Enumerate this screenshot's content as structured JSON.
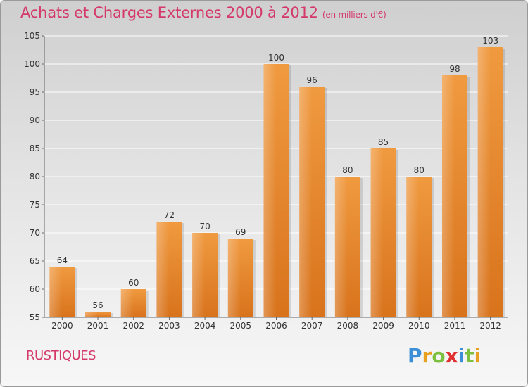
{
  "header": {
    "title": "Achats et Charges Externes 2000 à 2012",
    "subtitle": "(en milliers d'€)"
  },
  "footer": {
    "commune": "RUSTIQUES"
  },
  "logo": {
    "text": "Proxiti",
    "letters": [
      "P",
      "r",
      "o",
      "x",
      "i",
      "t",
      "i"
    ],
    "colors": [
      "#3a8fd8",
      "#e8a020",
      "#7cc040",
      "#e03030",
      "#3a8fd8",
      "#7cc040",
      "#e8a020"
    ]
  },
  "chart_data": {
    "type": "bar",
    "categories": [
      "2000",
      "2001",
      "2002",
      "2003",
      "2004",
      "2005",
      "2006",
      "2007",
      "2008",
      "2009",
      "2010",
      "2011",
      "2012"
    ],
    "values": [
      64,
      56,
      60,
      72,
      70,
      69,
      100,
      96,
      80,
      85,
      80,
      98,
      103
    ],
    "data_labels": [
      "64",
      "56",
      "60",
      "72",
      "70",
      "69",
      "100",
      "96",
      "80",
      "85",
      "80",
      "98",
      "103"
    ],
    "yticks": [
      55,
      60,
      65,
      70,
      75,
      80,
      85,
      90,
      95,
      100,
      105
    ],
    "ylim": [
      55,
      105
    ],
    "grid": true,
    "bar_color": "#f09a40",
    "bar_color_dark": "#d8731c"
  }
}
